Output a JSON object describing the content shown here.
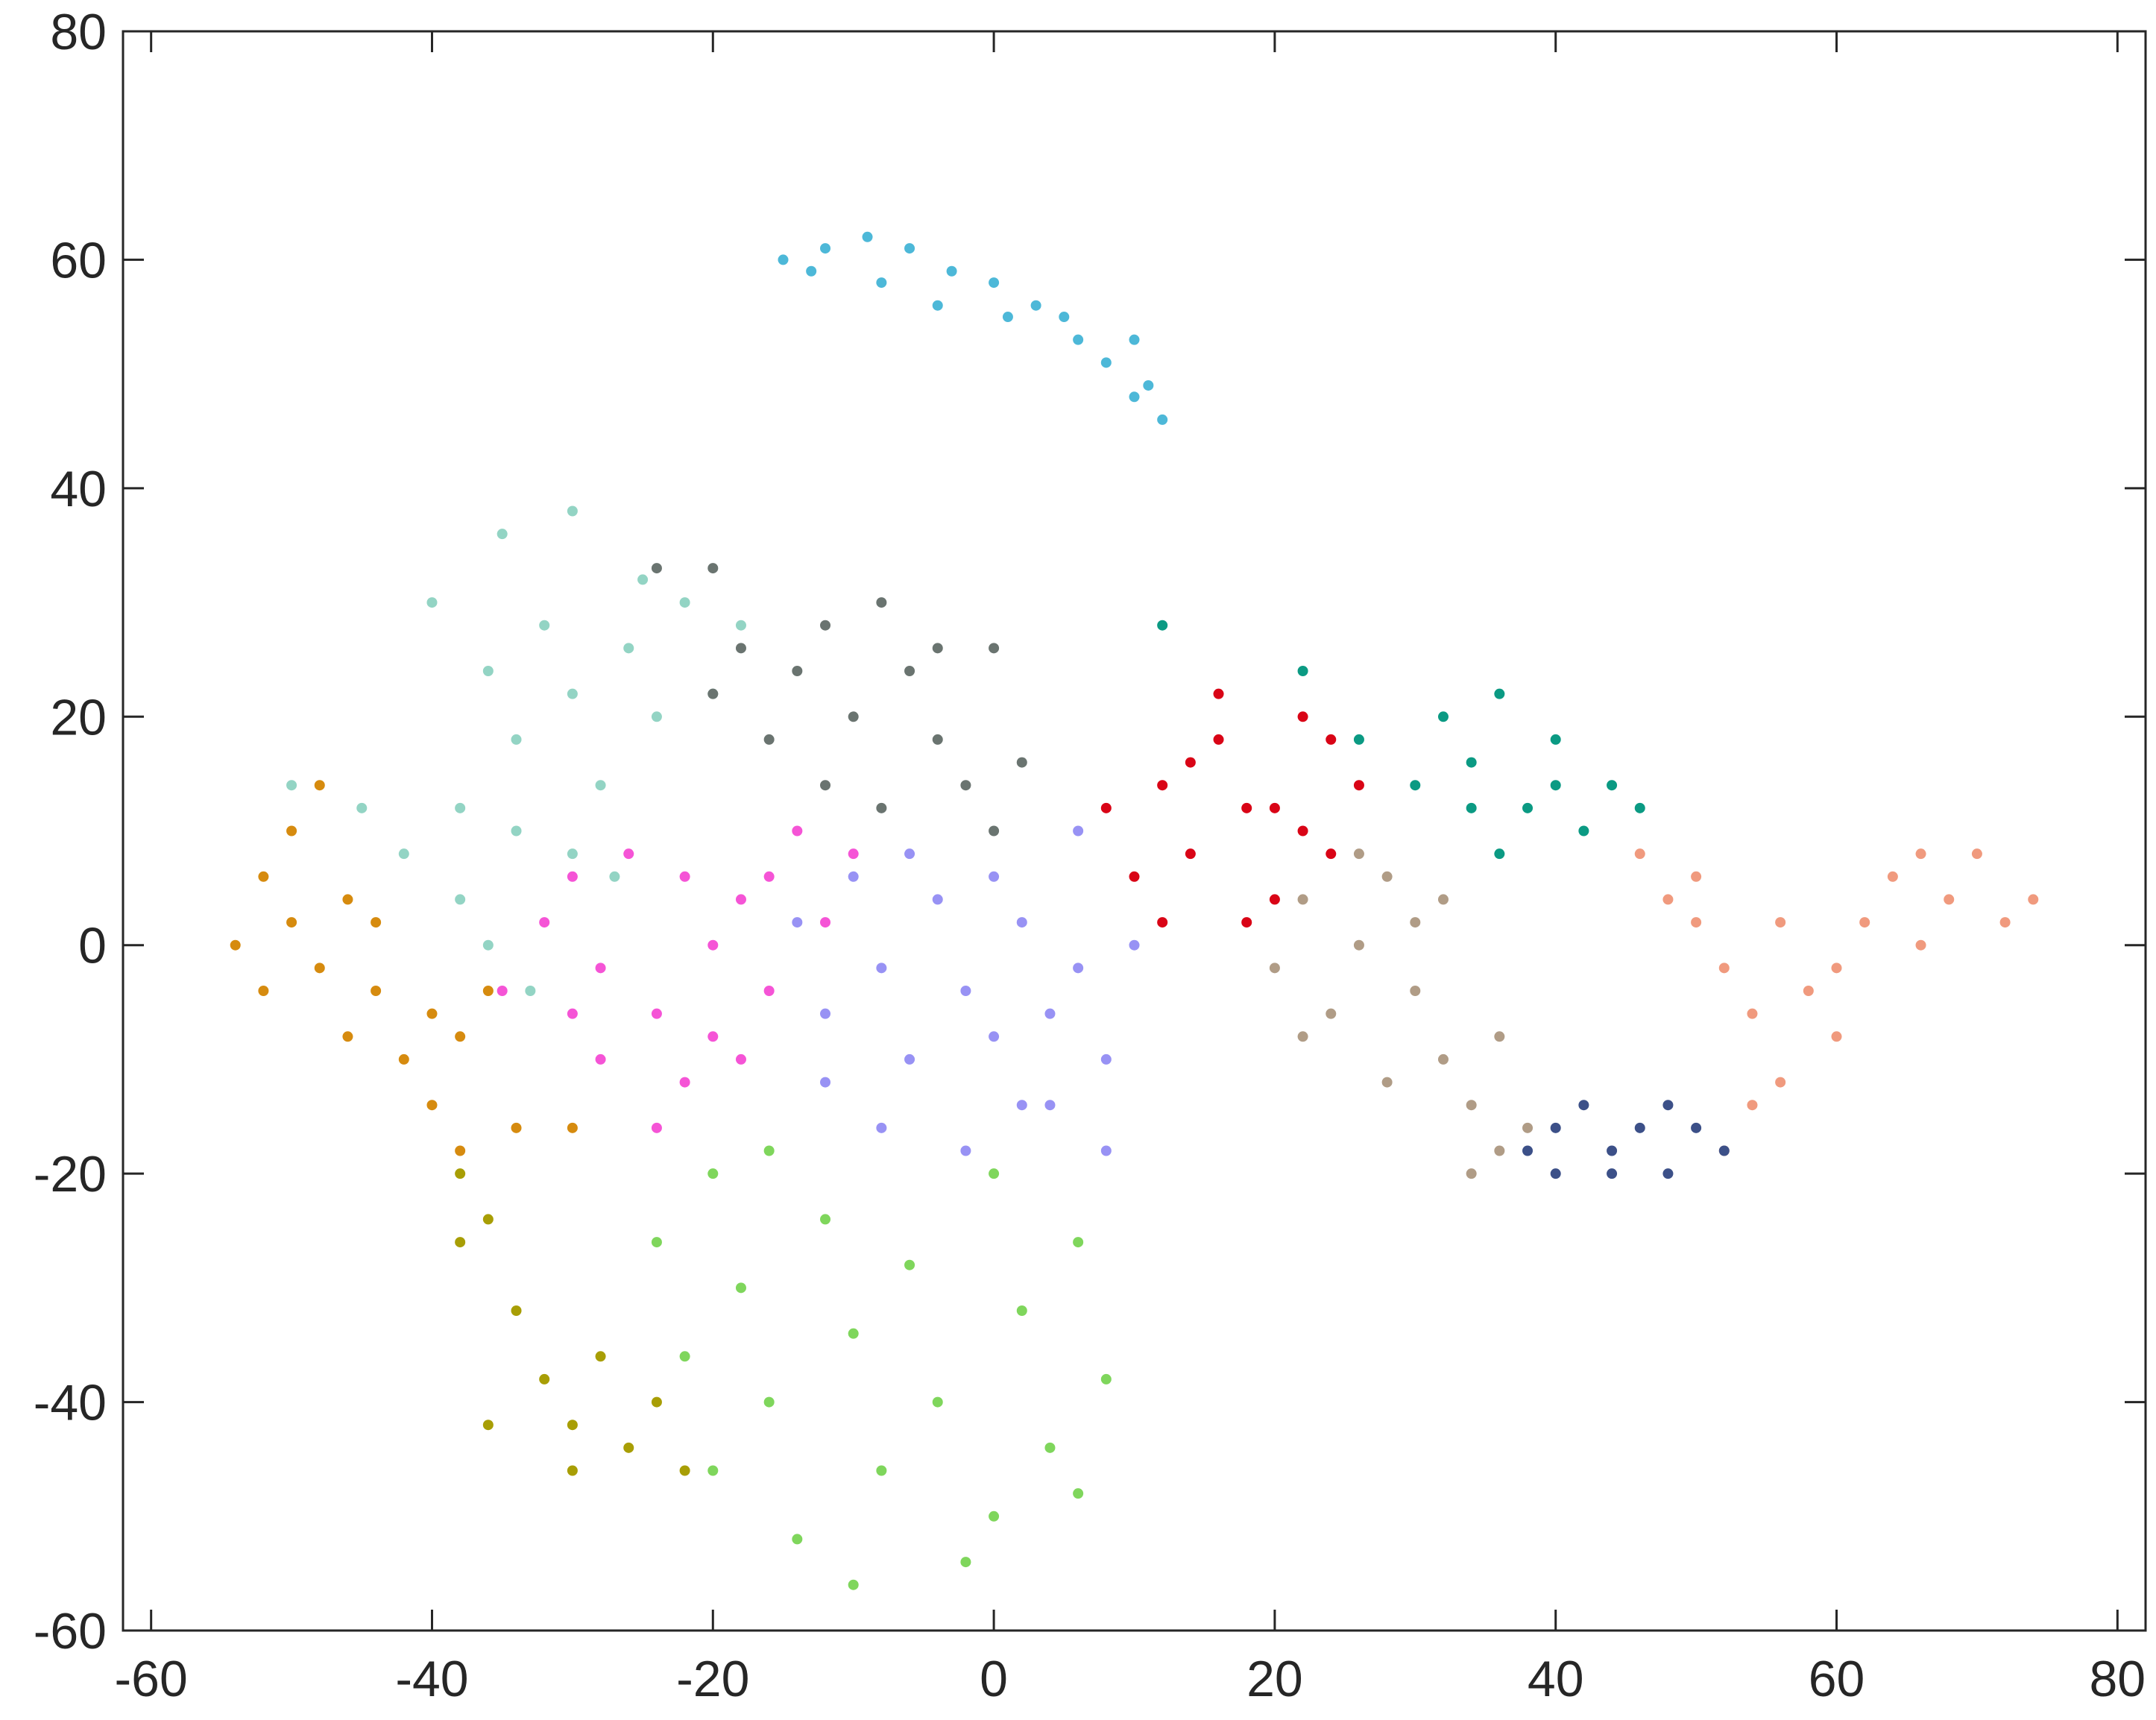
{
  "chart_data": {
    "type": "scatter",
    "title": "",
    "xlabel": "",
    "ylabel": "",
    "xlim": [
      -62,
      82
    ],
    "ylim": [
      -60,
      80
    ],
    "xticks": [
      -60,
      -40,
      -20,
      0,
      20,
      40,
      60,
      80
    ],
    "yticks": [
      -60,
      -40,
      -20,
      0,
      20,
      40,
      60,
      80
    ],
    "xtick_labels": [
      "-60",
      "-40",
      "-20",
      "0",
      "20",
      "40",
      "60",
      "80"
    ],
    "ytick_labels": [
      "-60",
      "-40",
      "-20",
      "0",
      "20",
      "40",
      "60",
      "80"
    ],
    "grid": false,
    "legend": "none",
    "series": [
      {
        "color": "#4db8d8",
        "points": [
          [
            -15,
            60
          ],
          [
            -12,
            61
          ],
          [
            -9,
            62
          ],
          [
            -6,
            61
          ],
          [
            -3,
            59
          ],
          [
            0,
            58
          ],
          [
            3,
            56
          ],
          [
            5,
            55
          ],
          [
            8,
            51
          ],
          [
            10,
            48
          ],
          [
            12,
            46
          ],
          [
            -13,
            59
          ],
          [
            -8,
            58
          ],
          [
            -4,
            56
          ],
          [
            1,
            55
          ],
          [
            6,
            53
          ],
          [
            10,
            53
          ],
          [
            11,
            49
          ]
        ]
      },
      {
        "color": "#93d4c4",
        "points": [
          [
            -50,
            14
          ],
          [
            -45,
            12
          ],
          [
            -42,
            8
          ],
          [
            -38,
            4
          ],
          [
            -36,
            0
          ],
          [
            -33,
            -4
          ],
          [
            -38,
            12
          ],
          [
            -34,
            18
          ],
          [
            -30,
            22
          ],
          [
            -26,
            26
          ],
          [
            -22,
            30
          ],
          [
            -18,
            28
          ],
          [
            -40,
            30
          ],
          [
            -35,
            36
          ],
          [
            -30,
            38
          ],
          [
            -25,
            32
          ],
          [
            -20,
            22
          ],
          [
            -32,
            28
          ],
          [
            -28,
            14
          ],
          [
            -24,
            20
          ],
          [
            -36,
            24
          ],
          [
            -30,
            8
          ],
          [
            -27,
            6
          ],
          [
            -34,
            10
          ]
        ]
      },
      {
        "color": "#d68b0f",
        "points": [
          [
            -54,
            0
          ],
          [
            -52,
            6
          ],
          [
            -50,
            2
          ],
          [
            -48,
            -2
          ],
          [
            -46,
            -8
          ],
          [
            -44,
            -4
          ],
          [
            -42,
            -10
          ],
          [
            -40,
            -14
          ],
          [
            -38,
            -8
          ],
          [
            -36,
            -4
          ],
          [
            -50,
            10
          ],
          [
            -48,
            14
          ],
          [
            -44,
            2
          ],
          [
            -52,
            -4
          ],
          [
            -46,
            4
          ],
          [
            -40,
            -6
          ],
          [
            -38,
            -18
          ],
          [
            -34,
            -16
          ],
          [
            -30,
            -16
          ]
        ]
      },
      {
        "color": "#f554d6",
        "points": [
          [
            -35,
            -4
          ],
          [
            -32,
            2
          ],
          [
            -30,
            6
          ],
          [
            -28,
            -2
          ],
          [
            -26,
            8
          ],
          [
            -24,
            -6
          ],
          [
            -22,
            -12
          ],
          [
            -20,
            0
          ],
          [
            -18,
            4
          ],
          [
            -16,
            -4
          ],
          [
            -14,
            10
          ],
          [
            -12,
            2
          ],
          [
            -10,
            8
          ],
          [
            -28,
            -10
          ],
          [
            -24,
            -16
          ],
          [
            -20,
            -8
          ],
          [
            -16,
            6
          ],
          [
            -22,
            6
          ],
          [
            -30,
            -6
          ],
          [
            -18,
            -10
          ]
        ]
      },
      {
        "color": "#6a7470",
        "points": [
          [
            -20,
            22
          ],
          [
            -18,
            26
          ],
          [
            -14,
            24
          ],
          [
            -12,
            28
          ],
          [
            -10,
            20
          ],
          [
            -8,
            30
          ],
          [
            -6,
            24
          ],
          [
            -4,
            18
          ],
          [
            -2,
            14
          ],
          [
            0,
            10
          ],
          [
            2,
            16
          ],
          [
            -16,
            18
          ],
          [
            -12,
            14
          ],
          [
            -8,
            12
          ],
          [
            -4,
            26
          ],
          [
            -24,
            33
          ],
          [
            -20,
            33
          ],
          [
            0,
            26
          ]
        ]
      },
      {
        "color": "#9892f4",
        "points": [
          [
            -14,
            2
          ],
          [
            -12,
            -6
          ],
          [
            -10,
            6
          ],
          [
            -8,
            -2
          ],
          [
            -6,
            -10
          ],
          [
            -4,
            4
          ],
          [
            -2,
            -4
          ],
          [
            0,
            -8
          ],
          [
            2,
            2
          ],
          [
            4,
            -14
          ],
          [
            6,
            -2
          ],
          [
            8,
            -10
          ],
          [
            10,
            0
          ],
          [
            -8,
            -16
          ],
          [
            -2,
            -18
          ],
          [
            4,
            -6
          ],
          [
            8,
            -18
          ],
          [
            -12,
            -12
          ],
          [
            0,
            6
          ],
          [
            6,
            10
          ],
          [
            -6,
            8
          ],
          [
            2,
            -14
          ]
        ]
      },
      {
        "color": "#7fd65c",
        "points": [
          [
            -24,
            -26
          ],
          [
            -22,
            -36
          ],
          [
            -20,
            -46
          ],
          [
            -18,
            -30
          ],
          [
            -16,
            -40
          ],
          [
            -14,
            -52
          ],
          [
            -12,
            -24
          ],
          [
            -10,
            -34
          ],
          [
            -8,
            -46
          ],
          [
            -6,
            -28
          ],
          [
            -4,
            -40
          ],
          [
            -2,
            -54
          ],
          [
            0,
            -20
          ],
          [
            2,
            -32
          ],
          [
            4,
            -44
          ],
          [
            6,
            -26
          ],
          [
            8,
            -38
          ],
          [
            -20,
            -20
          ],
          [
            -10,
            -56
          ],
          [
            0,
            -50
          ],
          [
            6,
            -48
          ],
          [
            -16,
            -18
          ]
        ]
      },
      {
        "color": "#a89e05",
        "points": [
          [
            -38,
            -26
          ],
          [
            -36,
            -24
          ],
          [
            -34,
            -32
          ],
          [
            -32,
            -38
          ],
          [
            -30,
            -42
          ],
          [
            -28,
            -36
          ],
          [
            -26,
            -44
          ],
          [
            -24,
            -40
          ],
          [
            -36,
            -42
          ],
          [
            -30,
            -46
          ],
          [
            -22,
            -46
          ],
          [
            -38,
            -20
          ]
        ]
      },
      {
        "color": "#d90416",
        "points": [
          [
            8,
            12
          ],
          [
            10,
            6
          ],
          [
            12,
            14
          ],
          [
            14,
            8
          ],
          [
            16,
            18
          ],
          [
            18,
            2
          ],
          [
            20,
            12
          ],
          [
            22,
            20
          ],
          [
            24,
            8
          ],
          [
            26,
            14
          ],
          [
            12,
            2
          ],
          [
            16,
            22
          ],
          [
            20,
            4
          ],
          [
            24,
            18
          ],
          [
            18,
            12
          ],
          [
            14,
            16
          ],
          [
            22,
            10
          ]
        ]
      },
      {
        "color": "#b09c86",
        "points": [
          [
            20,
            -2
          ],
          [
            22,
            4
          ],
          [
            24,
            -6
          ],
          [
            26,
            0
          ],
          [
            28,
            6
          ],
          [
            30,
            -4
          ],
          [
            32,
            -10
          ],
          [
            34,
            -14
          ],
          [
            36,
            -8
          ],
          [
            38,
            -16
          ],
          [
            26,
            8
          ],
          [
            30,
            2
          ],
          [
            34,
            -20
          ],
          [
            22,
            -8
          ],
          [
            32,
            4
          ],
          [
            28,
            -12
          ],
          [
            36,
            -18
          ]
        ]
      },
      {
        "color": "#0b9a83",
        "points": [
          [
            26,
            18
          ],
          [
            30,
            14
          ],
          [
            32,
            20
          ],
          [
            34,
            16
          ],
          [
            36,
            22
          ],
          [
            38,
            12
          ],
          [
            40,
            18
          ],
          [
            42,
            10
          ],
          [
            44,
            14
          ],
          [
            46,
            12
          ],
          [
            36,
            8
          ],
          [
            40,
            14
          ],
          [
            12,
            28
          ],
          [
            22,
            24
          ],
          [
            34,
            12
          ]
        ]
      },
      {
        "color": "#f09a7e",
        "points": [
          [
            46,
            8
          ],
          [
            48,
            4
          ],
          [
            50,
            6
          ],
          [
            52,
            -2
          ],
          [
            54,
            -6
          ],
          [
            56,
            -12
          ],
          [
            58,
            -4
          ],
          [
            60,
            -8
          ],
          [
            56,
            2
          ],
          [
            54,
            -14
          ],
          [
            62,
            2
          ],
          [
            64,
            6
          ],
          [
            66,
            0
          ],
          [
            68,
            4
          ],
          [
            70,
            8
          ],
          [
            72,
            2
          ],
          [
            74,
            4
          ],
          [
            52,
            -18
          ],
          [
            60,
            -2
          ],
          [
            66,
            8
          ],
          [
            50,
            2
          ]
        ]
      },
      {
        "color": "#3c5088",
        "points": [
          [
            38,
            -18
          ],
          [
            40,
            -20
          ],
          [
            42,
            -14
          ],
          [
            44,
            -18
          ],
          [
            46,
            -16
          ],
          [
            48,
            -20
          ],
          [
            50,
            -16
          ],
          [
            52,
            -18
          ],
          [
            44,
            -20
          ],
          [
            40,
            -16
          ],
          [
            48,
            -14
          ]
        ]
      }
    ]
  }
}
